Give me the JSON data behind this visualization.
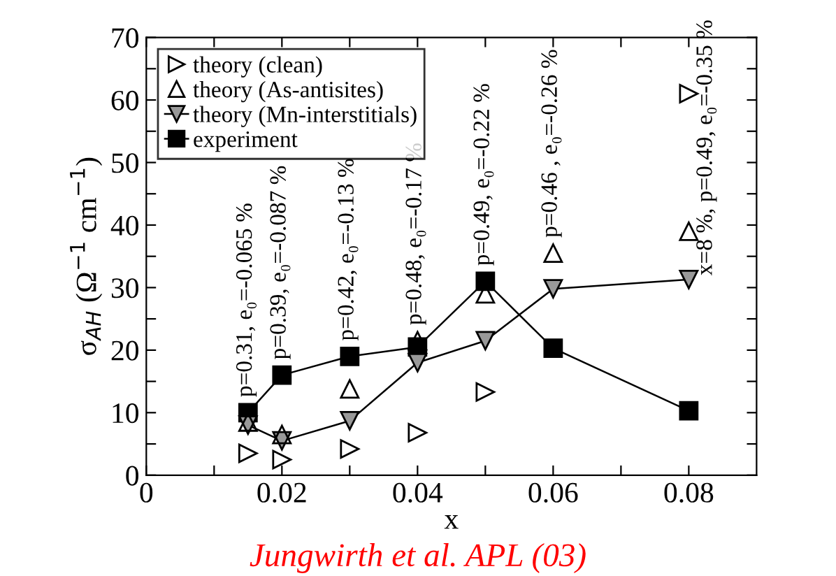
{
  "chart_data": {
    "type": "line",
    "xlabel": "x",
    "ylabel": "σ$_{AH}$ (Ω$^{−1}$ cm$^{−1}$)",
    "x": [
      0.015,
      0.02,
      0.03,
      0.04,
      0.05,
      0.06,
      0.08
    ],
    "series": [
      {
        "name": "theory (clean)",
        "type": "scatter",
        "marker": "triangle_right",
        "color": "#000000",
        "values": [
          3.5,
          2.5,
          4.2,
          6.8,
          13.3,
          null,
          61
        ]
      },
      {
        "name": "theory (As-antisites)",
        "type": "scatter",
        "marker": "triangle",
        "color": "#000000",
        "values": [
          8.5,
          6.5,
          13.8,
          21.5,
          29,
          35.5,
          39
        ]
      },
      {
        "name": "theory (Mn-interstitials)",
        "marker": "triangle_down",
        "color": "#000000",
        "values": [
          8,
          5.5,
          8.7,
          18,
          21.5,
          29.8,
          31.3
        ]
      },
      {
        "name": "experiment",
        "marker": "square",
        "color": "#000000",
        "values": [
          10,
          16,
          19,
          20.5,
          31,
          20.3,
          10.3
        ]
      }
    ],
    "xlim": [
      0,
      0.09
    ],
    "ylim": [
      0,
      70
    ],
    "xticks": [
      {
        "value": 0,
        "label": "0"
      },
      {
        "value": 0.01,
        "label": null
      },
      0.02,
      {
        "value": 0.03,
        "label": null
      },
      0.04,
      {
        "value": 0.05,
        "label": null
      },
      0.06,
      {
        "value": 0.07,
        "label": null
      },
      0.08
    ],
    "yticks": [
      0,
      {
        "value": 5,
        "label": null
      },
      10,
      {
        "value": 15,
        "label": null
      },
      20,
      {
        "value": 25,
        "label": null
      },
      30,
      {
        "value": 35,
        "label": null
      },
      40,
      {
        "value": 45,
        "label": null
      },
      50,
      {
        "value": 55,
        "label": null
      },
      60,
      {
        "value": 65,
        "label": null
      },
      70
    ],
    "legend": "top left",
    "grid": false,
    "annotations": [
      {
        "text": "p=0.31, e₀=-0.065 %",
        "x": 0.015,
        "y": 10
      },
      {
        "text": "p=0.39, e₀=-0.087 %",
        "x": 0.02,
        "y": 16
      },
      {
        "text": "p=0.42, e₀=-0.13 %",
        "x": 0.03,
        "y": 19
      },
      {
        "text": "p=0.48, e₀=-0.17 %",
        "x": 0.04,
        "y": 21.5
      },
      {
        "text": "p=0.49, e₀=-0.22 %",
        "x": 0.05,
        "y": 31
      },
      {
        "text": "p=0.46 , e₀=-0.26 %",
        "x": 0.06,
        "y": 35.5
      },
      {
        "text": "x=8 %, p=0.49, e₀=-0.35 %",
        "x": 0.08,
        "y": 31.3
      },
      "Jungwirth et al. APL (03)"
    ]
  }
}
